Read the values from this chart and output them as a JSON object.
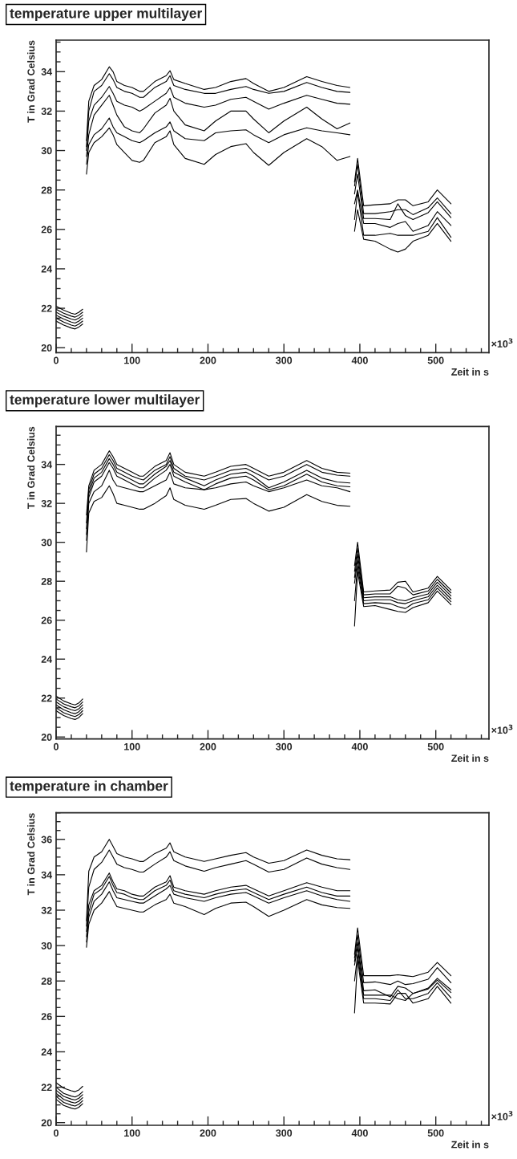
{
  "chart_data": [
    {
      "type": "line",
      "title": "temperature upper multilayer",
      "xlabel": "Zeit in s",
      "ylabel": "T in Grad Celsius",
      "annotations": [
        "×10$^{3}$"
      ],
      "xlim": [
        0,
        570
      ],
      "ylim": [
        19.75,
        35.6
      ],
      "xticks": [
        0,
        100,
        200,
        300,
        400,
        500
      ],
      "yticks": [
        20,
        22,
        24,
        26,
        28,
        30,
        32,
        34
      ],
      "x": [
        0,
        10,
        20,
        25,
        30,
        35,
        37,
        40,
        43,
        50,
        60,
        70,
        75,
        80,
        90,
        100,
        110,
        115,
        130,
        145,
        150,
        155,
        170,
        195,
        210,
        230,
        250,
        260,
        280,
        300,
        330,
        350,
        370,
        387,
        388,
        393,
        397,
        405,
        420,
        440,
        450,
        460,
        470,
        490,
        502,
        520
      ],
      "series": [
        {
          "color": "#000000",
          "values": [
            22.1,
            21.9,
            21.75,
            21.7,
            21.8,
            21.95,
            null,
            30.5,
            32.5,
            33.3,
            33.6,
            34.25,
            34.0,
            33.5,
            33.3,
            33.2,
            33.0,
            33.0,
            33.5,
            33.8,
            34.05,
            33.6,
            33.4,
            33.1,
            33.2,
            33.5,
            33.65,
            33.4,
            33.0,
            33.2,
            33.75,
            33.5,
            33.3,
            33.2,
            null,
            28.4,
            29.6,
            27.2,
            27.25,
            27.3,
            27.5,
            27.5,
            27.2,
            27.4,
            28.0,
            27.3
          ]
        },
        {
          "color": "#000000",
          "values": [
            21.95,
            21.75,
            21.6,
            21.55,
            21.65,
            21.8,
            null,
            30.2,
            32.0,
            33.0,
            33.3,
            33.9,
            33.6,
            33.2,
            33.0,
            32.9,
            32.7,
            32.7,
            33.2,
            33.5,
            33.8,
            33.3,
            33.1,
            32.9,
            32.9,
            33.1,
            33.25,
            33.1,
            32.9,
            33.0,
            33.45,
            33.2,
            33.0,
            32.95,
            null,
            28.2,
            29.3,
            26.8,
            26.8,
            26.9,
            27.0,
            27.0,
            26.75,
            27.1,
            27.6,
            26.8
          ]
        },
        {
          "color": "#000000",
          "values": [
            21.8,
            21.6,
            21.45,
            21.4,
            21.5,
            21.65,
            null,
            30.0,
            31.5,
            32.3,
            32.7,
            33.25,
            32.9,
            32.5,
            32.3,
            32.2,
            32.0,
            32.1,
            32.5,
            32.9,
            33.2,
            32.7,
            32.4,
            32.2,
            32.3,
            32.6,
            32.7,
            32.5,
            32.1,
            32.4,
            32.8,
            32.6,
            32.4,
            32.35,
            null,
            27.8,
            28.8,
            26.55,
            26.55,
            26.5,
            27.3,
            26.7,
            26.5,
            26.85,
            27.4,
            26.6
          ]
        },
        {
          "color": "#000000",
          "values": [
            21.65,
            21.45,
            21.3,
            21.25,
            21.35,
            21.5,
            null,
            29.7,
            30.8,
            31.8,
            32.3,
            32.8,
            32.3,
            31.8,
            31.2,
            31.0,
            30.9,
            31.1,
            31.9,
            32.3,
            32.65,
            32.0,
            31.3,
            31.0,
            31.5,
            32.0,
            32.0,
            31.6,
            30.9,
            31.5,
            32.2,
            31.6,
            31.1,
            31.4,
            null,
            27.3,
            28.0,
            26.3,
            26.3,
            26.1,
            26.3,
            26.4,
            25.9,
            26.2,
            26.9,
            26.2
          ]
        },
        {
          "color": "#000000",
          "values": [
            21.5,
            21.3,
            21.15,
            21.1,
            21.2,
            21.35,
            null,
            29.3,
            30.3,
            30.8,
            31.1,
            31.65,
            31.2,
            30.9,
            30.7,
            30.5,
            30.4,
            30.5,
            30.9,
            31.2,
            31.45,
            31.0,
            30.6,
            30.5,
            30.9,
            31.0,
            31.05,
            30.8,
            30.4,
            30.8,
            31.15,
            31.0,
            30.9,
            30.8,
            null,
            26.5,
            27.9,
            25.7,
            25.7,
            25.8,
            25.7,
            25.7,
            25.7,
            25.9,
            26.6,
            25.6
          ]
        },
        {
          "color": "#000000",
          "values": [
            21.35,
            21.15,
            21.0,
            20.95,
            21.05,
            21.2,
            null,
            28.8,
            29.9,
            30.4,
            30.7,
            31.15,
            30.8,
            30.3,
            29.9,
            29.5,
            29.4,
            29.5,
            30.4,
            30.7,
            31.0,
            30.3,
            29.6,
            29.3,
            29.8,
            30.2,
            30.35,
            29.9,
            29.25,
            29.9,
            30.6,
            30.2,
            29.5,
            29.7,
            null,
            25.9,
            27.0,
            25.5,
            25.4,
            25.0,
            24.85,
            25.0,
            25.4,
            25.7,
            26.3,
            25.4
          ]
        }
      ]
    },
    {
      "type": "line",
      "title": "temperature lower multilayer",
      "xlabel": "Zeit in s",
      "ylabel": "T in Grad Celsius",
      "annotations": [
        "×10$^{3}$"
      ],
      "xlim": [
        0,
        570
      ],
      "ylim": [
        19.9,
        35.95
      ],
      "xticks": [
        0,
        100,
        200,
        300,
        400,
        500
      ],
      "yticks": [
        20,
        22,
        24,
        26,
        28,
        30,
        32,
        34
      ],
      "x": [
        0,
        10,
        20,
        25,
        30,
        35,
        37,
        40,
        43,
        50,
        60,
        70,
        75,
        80,
        90,
        100,
        110,
        115,
        130,
        145,
        150,
        155,
        170,
        195,
        210,
        230,
        250,
        260,
        280,
        300,
        330,
        350,
        370,
        387,
        388,
        393,
        397,
        405,
        420,
        440,
        450,
        460,
        470,
        490,
        502,
        520
      ],
      "series": [
        {
          "color": "#000000",
          "values": [
            22.1,
            21.85,
            21.7,
            21.65,
            21.75,
            21.95,
            null,
            31.4,
            32.9,
            33.7,
            34.0,
            34.7,
            34.4,
            34.0,
            33.8,
            33.6,
            33.4,
            33.4,
            33.9,
            34.2,
            34.6,
            34.0,
            33.6,
            33.4,
            33.6,
            33.9,
            34.0,
            33.8,
            33.4,
            33.6,
            34.2,
            33.8,
            33.6,
            33.55,
            null,
            28.8,
            30.0,
            27.45,
            27.5,
            27.55,
            27.95,
            28.0,
            27.45,
            27.65,
            28.25,
            27.55
          ]
        },
        {
          "color": "#000000",
          "values": [
            21.95,
            21.7,
            21.55,
            21.5,
            21.6,
            21.8,
            null,
            31.0,
            32.7,
            33.5,
            33.8,
            34.5,
            34.2,
            33.8,
            33.6,
            33.4,
            33.25,
            33.2,
            33.7,
            34.0,
            34.4,
            33.8,
            33.4,
            33.2,
            33.4,
            33.7,
            33.8,
            33.6,
            33.2,
            33.4,
            34.0,
            33.6,
            33.45,
            33.4,
            null,
            28.5,
            29.7,
            27.3,
            27.35,
            27.35,
            27.75,
            27.65,
            27.3,
            27.5,
            28.1,
            27.4
          ]
        },
        {
          "color": "#000000",
          "values": [
            21.8,
            21.55,
            21.4,
            21.35,
            21.45,
            21.65,
            null,
            30.7,
            32.5,
            33.3,
            33.6,
            34.3,
            34.0,
            33.6,
            33.4,
            33.2,
            33.0,
            33.0,
            33.5,
            33.9,
            34.2,
            33.6,
            33.3,
            32.9,
            33.2,
            33.5,
            33.6,
            33.4,
            32.8,
            33.1,
            33.7,
            33.3,
            33.1,
            33.05,
            null,
            28.2,
            29.4,
            27.15,
            27.2,
            27.2,
            27.05,
            27.0,
            27.15,
            27.35,
            27.95,
            27.25
          ]
        },
        {
          "color": "#000000",
          "values": [
            21.65,
            21.4,
            21.25,
            21.2,
            21.3,
            21.5,
            null,
            30.4,
            32.3,
            33.1,
            33.4,
            34.1,
            33.8,
            33.4,
            33.2,
            33.0,
            32.8,
            32.8,
            33.3,
            33.7,
            34.0,
            33.4,
            33.1,
            32.7,
            33.0,
            33.3,
            33.4,
            33.2,
            32.7,
            32.9,
            33.5,
            33.1,
            32.9,
            32.85,
            null,
            27.9,
            29.1,
            27.0,
            27.05,
            27.05,
            26.9,
            26.85,
            27.0,
            27.2,
            27.8,
            27.1
          ]
        },
        {
          "color": "#000000",
          "values": [
            21.5,
            21.25,
            21.1,
            21.05,
            21.15,
            21.35,
            null,
            30.1,
            32.0,
            32.6,
            32.9,
            33.7,
            33.2,
            32.9,
            32.8,
            32.7,
            32.6,
            32.6,
            32.9,
            33.2,
            33.6,
            33.0,
            32.8,
            32.7,
            32.8,
            33.0,
            33.1,
            32.9,
            32.6,
            32.8,
            33.2,
            32.9,
            32.8,
            32.6,
            null,
            27.0,
            28.8,
            26.85,
            26.9,
            26.85,
            26.7,
            26.6,
            26.85,
            27.05,
            27.65,
            26.95
          ]
        },
        {
          "color": "#000000",
          "values": [
            21.35,
            21.1,
            20.95,
            20.9,
            21.0,
            21.2,
            null,
            29.5,
            31.5,
            32.1,
            32.3,
            32.9,
            32.5,
            32.0,
            31.9,
            31.8,
            31.7,
            31.7,
            32.0,
            32.4,
            32.8,
            32.2,
            31.9,
            31.7,
            31.9,
            32.2,
            32.25,
            32.0,
            31.6,
            31.8,
            32.45,
            32.1,
            31.9,
            31.85,
            null,
            25.7,
            28.5,
            26.7,
            26.75,
            26.55,
            26.45,
            26.4,
            26.65,
            26.9,
            27.5,
            26.8
          ]
        }
      ]
    },
    {
      "type": "line",
      "title": "temperature in chamber",
      "xlabel": "Zeit in s",
      "ylabel": "T in Grad Celsius",
      "annotations": [
        "×10$^{3}$"
      ],
      "xlim": [
        0,
        570
      ],
      "ylim": [
        19.85,
        37.5
      ],
      "xticks": [
        0,
        100,
        200,
        300,
        400,
        500
      ],
      "yticks": [
        20,
        22,
        24,
        26,
        28,
        30,
        32,
        34,
        36
      ],
      "x": [
        0,
        10,
        20,
        25,
        30,
        35,
        37,
        40,
        43,
        50,
        60,
        70,
        75,
        80,
        90,
        100,
        110,
        115,
        130,
        145,
        150,
        155,
        170,
        195,
        210,
        230,
        250,
        260,
        280,
        300,
        330,
        350,
        370,
        387,
        388,
        393,
        397,
        405,
        420,
        440,
        450,
        460,
        470,
        490,
        502,
        520
      ],
      "series": [
        {
          "color": "#000000",
          "values": [
            22.25,
            21.95,
            21.8,
            21.75,
            21.85,
            22.05,
            null,
            31.4,
            34.2,
            35.0,
            35.3,
            36.0,
            35.6,
            35.2,
            35.0,
            34.9,
            34.75,
            34.75,
            35.2,
            35.5,
            35.8,
            35.3,
            35.0,
            34.75,
            34.9,
            35.1,
            35.25,
            35.0,
            34.65,
            34.8,
            35.4,
            35.1,
            34.9,
            34.85,
            null,
            29.5,
            31.0,
            28.3,
            28.3,
            28.3,
            28.35,
            28.3,
            28.25,
            28.5,
            29.05,
            28.3
          ]
        },
        {
          "color": "#000000",
          "values": [
            22.0,
            21.65,
            21.5,
            21.45,
            21.55,
            21.75,
            null,
            31.1,
            33.3,
            34.3,
            34.7,
            35.4,
            35.0,
            34.6,
            34.4,
            34.3,
            34.15,
            34.15,
            34.6,
            35.0,
            35.3,
            34.8,
            34.5,
            34.2,
            34.4,
            34.6,
            34.8,
            34.6,
            34.15,
            34.3,
            34.95,
            34.6,
            34.4,
            34.3,
            null,
            29.3,
            30.6,
            27.9,
            27.95,
            27.8,
            28.0,
            27.8,
            27.85,
            28.1,
            28.75,
            27.9
          ]
        },
        {
          "color": "#000000",
          "values": [
            21.83,
            21.48,
            21.33,
            21.28,
            21.38,
            21.58,
            null,
            30.8,
            32.3,
            33.1,
            33.4,
            34.1,
            33.6,
            33.2,
            33.1,
            32.9,
            32.8,
            32.8,
            33.3,
            33.6,
            33.95,
            33.3,
            33.1,
            32.9,
            33.1,
            33.3,
            33.4,
            33.2,
            32.8,
            33.1,
            33.55,
            33.3,
            33.1,
            33.1,
            null,
            29.1,
            30.2,
            27.45,
            27.5,
            27.1,
            27.7,
            27.6,
            27.3,
            27.6,
            28.15,
            27.5
          ]
        },
        {
          "color": "#000000",
          "values": [
            21.66,
            21.31,
            21.16,
            21.11,
            21.21,
            21.41,
            null,
            30.5,
            31.9,
            32.9,
            33.2,
            33.9,
            33.4,
            33.0,
            32.9,
            32.7,
            32.6,
            32.6,
            33.1,
            33.4,
            33.7,
            33.1,
            32.9,
            32.7,
            32.9,
            33.1,
            33.2,
            33.0,
            32.6,
            32.9,
            33.3,
            33.0,
            32.8,
            32.8,
            null,
            28.9,
            29.9,
            27.2,
            27.2,
            27.2,
            27.0,
            26.9,
            27.3,
            27.55,
            28.05,
            27.35
          ]
        },
        {
          "color": "#000000",
          "values": [
            21.49,
            21.14,
            20.99,
            20.94,
            21.04,
            21.24,
            null,
            30.2,
            31.6,
            32.5,
            32.9,
            33.6,
            33.1,
            32.7,
            32.6,
            32.5,
            32.4,
            32.4,
            32.8,
            33.2,
            33.4,
            32.9,
            32.7,
            32.5,
            32.7,
            32.9,
            33.0,
            32.8,
            32.4,
            32.7,
            33.1,
            32.8,
            32.6,
            32.5,
            null,
            28.0,
            29.5,
            27.0,
            27.0,
            26.9,
            27.5,
            27.0,
            27.0,
            27.3,
            27.9,
            27.05
          ]
        },
        {
          "color": "#000000",
          "values": [
            21.32,
            20.97,
            20.82,
            20.77,
            20.87,
            21.07,
            null,
            29.9,
            31.2,
            32.0,
            32.4,
            33.05,
            32.6,
            32.2,
            32.1,
            32.0,
            31.9,
            31.9,
            32.3,
            32.6,
            32.9,
            32.4,
            32.2,
            31.75,
            32.1,
            32.4,
            32.45,
            32.2,
            31.65,
            32.0,
            32.6,
            32.3,
            32.15,
            32.1,
            null,
            26.2,
            29.2,
            26.75,
            26.75,
            26.7,
            27.3,
            27.3,
            26.75,
            27.0,
            27.7,
            26.75
          ]
        }
      ]
    }
  ]
}
